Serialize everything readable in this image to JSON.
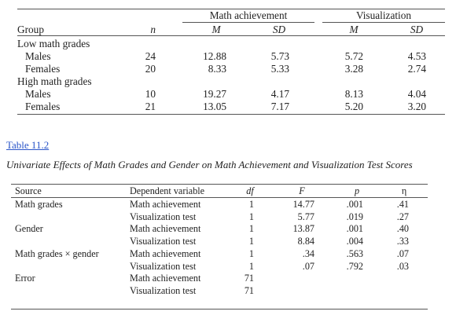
{
  "table1": {
    "group_headers": {
      "math": "Math achievement",
      "vis": "Visualization"
    },
    "col_headers": {
      "group": "Group",
      "n": "n",
      "m1": "M",
      "sd1": "SD",
      "m2": "M",
      "sd2": "SD"
    },
    "rows": [
      {
        "label": "Low math grades",
        "indent": false,
        "n": "",
        "m1": "",
        "sd1": "",
        "m2": "",
        "sd2": ""
      },
      {
        "label": "Males",
        "indent": true,
        "n": "24",
        "m1": "12.88",
        "sd1": "5.73",
        "m2": "5.72",
        "sd2": "4.53"
      },
      {
        "label": "Females",
        "indent": true,
        "n": "20",
        "m1": "8.33",
        "sd1": "5.33",
        "m2": "3.28",
        "sd2": "2.74"
      },
      {
        "label": "High math grades",
        "indent": false,
        "n": "",
        "m1": "",
        "sd1": "",
        "m2": "",
        "sd2": ""
      },
      {
        "label": "Males",
        "indent": true,
        "n": "10",
        "m1": "19.27",
        "sd1": "4.17",
        "m2": "8.13",
        "sd2": "4.04"
      },
      {
        "label": "Females",
        "indent": true,
        "n": "21",
        "m1": "13.05",
        "sd1": "7.17",
        "m2": "5.20",
        "sd2": "3.20"
      }
    ]
  },
  "table2_link": "Table 11.2",
  "table2_caption": "Univariate Effects of Math Grades and Gender on Math Achievement and Visualization Test Scores",
  "table2": {
    "col_headers": {
      "source": "Source",
      "dv": "Dependent variable",
      "df": "df",
      "f": "F",
      "p": "p",
      "eta": "η"
    },
    "rows": [
      {
        "source": "Math grades",
        "dv": "Math achievement",
        "df": "1",
        "f": "14.77",
        "p": ".001",
        "eta": ".41"
      },
      {
        "source": "",
        "dv": "Visualization test",
        "df": "1",
        "f": "5.77",
        "p": ".019",
        "eta": ".27"
      },
      {
        "source": "Gender",
        "dv": "Math achievement",
        "df": "1",
        "f": "13.87",
        "p": ".001",
        "eta": ".40"
      },
      {
        "source": "",
        "dv": "Visualization test",
        "df": "1",
        "f": "8.84",
        "p": ".004",
        "eta": ".33"
      },
      {
        "source": "Math grades × gender",
        "dv": "Math achievement",
        "df": "1",
        "f": ".34",
        "p": ".563",
        "eta": ".07"
      },
      {
        "source": "",
        "dv": "Visualization test",
        "df": "1",
        "f": ".07",
        "p": ".792",
        "eta": ".03"
      },
      {
        "source": "Error",
        "dv": "Math achievement",
        "df": "71",
        "f": "",
        "p": "",
        "eta": ""
      },
      {
        "source": "",
        "dv": "Visualization test",
        "df": "71",
        "f": "",
        "p": "",
        "eta": ""
      }
    ]
  }
}
